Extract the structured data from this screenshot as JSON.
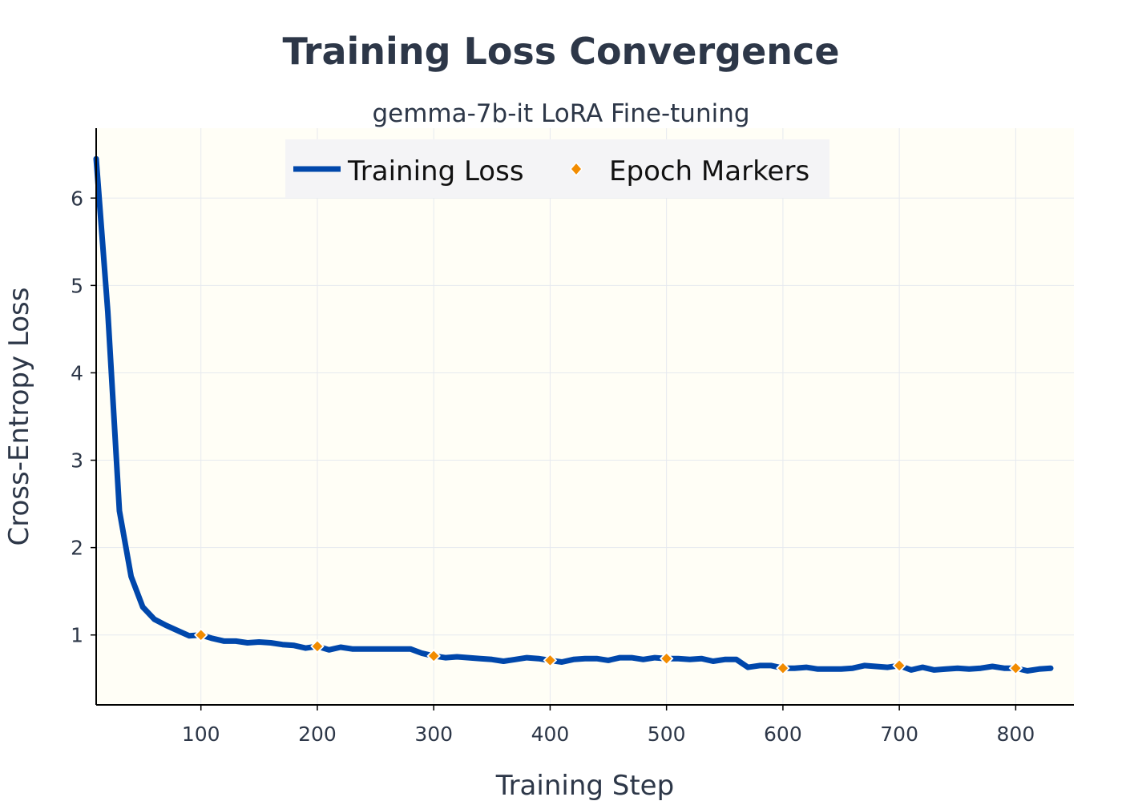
{
  "colors": {
    "loss_line": "#0047ab",
    "epoch_marker": "#f28c00",
    "plot_bg": "#fffef6",
    "grid": "#e6e9ef",
    "legend_bg": "#f4f4f6",
    "text": "#2d3748"
  },
  "chart_data": {
    "type": "line",
    "title": "Training Loss Convergence",
    "subtitle": "gemma-7b-it LoRA Fine-tuning",
    "xlabel": "Training Step",
    "ylabel": "Cross-Entropy Loss",
    "xlim": [
      10,
      850
    ],
    "ylim": [
      0.2,
      6.8
    ],
    "xticks": [
      100,
      200,
      300,
      400,
      500,
      600,
      700,
      800
    ],
    "yticks": [
      1,
      2,
      3,
      4,
      5,
      6
    ],
    "grid": true,
    "legend_position": "top-center",
    "series": [
      {
        "name": "Training Loss",
        "kind": "line",
        "x": [
          10,
          20,
          30,
          40,
          50,
          60,
          70,
          80,
          90,
          100,
          110,
          120,
          130,
          140,
          150,
          160,
          170,
          180,
          190,
          200,
          210,
          220,
          230,
          240,
          250,
          260,
          270,
          280,
          290,
          300,
          310,
          320,
          330,
          340,
          350,
          360,
          370,
          380,
          390,
          400,
          410,
          420,
          430,
          440,
          450,
          460,
          470,
          480,
          490,
          500,
          510,
          520,
          530,
          540,
          550,
          560,
          570,
          580,
          590,
          600,
          610,
          620,
          630,
          640,
          650,
          660,
          670,
          680,
          690,
          700,
          710,
          720,
          730,
          740,
          750,
          760,
          770,
          780,
          790,
          800,
          810,
          820,
          830
        ],
        "y": [
          6.45,
          4.7,
          2.42,
          1.67,
          1.32,
          1.18,
          1.11,
          1.05,
          0.99,
          1.0,
          0.96,
          0.93,
          0.93,
          0.91,
          0.92,
          0.91,
          0.89,
          0.88,
          0.85,
          0.87,
          0.83,
          0.86,
          0.84,
          0.84,
          0.84,
          0.84,
          0.84,
          0.84,
          0.79,
          0.76,
          0.74,
          0.75,
          0.74,
          0.73,
          0.72,
          0.7,
          0.72,
          0.74,
          0.73,
          0.71,
          0.69,
          0.72,
          0.73,
          0.73,
          0.71,
          0.74,
          0.74,
          0.72,
          0.74,
          0.73,
          0.73,
          0.72,
          0.73,
          0.7,
          0.72,
          0.72,
          0.63,
          0.65,
          0.65,
          0.62,
          0.62,
          0.63,
          0.61,
          0.61,
          0.61,
          0.62,
          0.65,
          0.64,
          0.63,
          0.65,
          0.6,
          0.63,
          0.6,
          0.61,
          0.62,
          0.61,
          0.62,
          0.64,
          0.62,
          0.62,
          0.59,
          0.61,
          0.62
        ]
      },
      {
        "name": "Epoch Markers",
        "kind": "marker",
        "x": [
          100,
          200,
          300,
          400,
          500,
          600,
          700,
          800
        ],
        "y": [
          1.0,
          0.87,
          0.76,
          0.71,
          0.73,
          0.62,
          0.65,
          0.62
        ]
      }
    ]
  }
}
